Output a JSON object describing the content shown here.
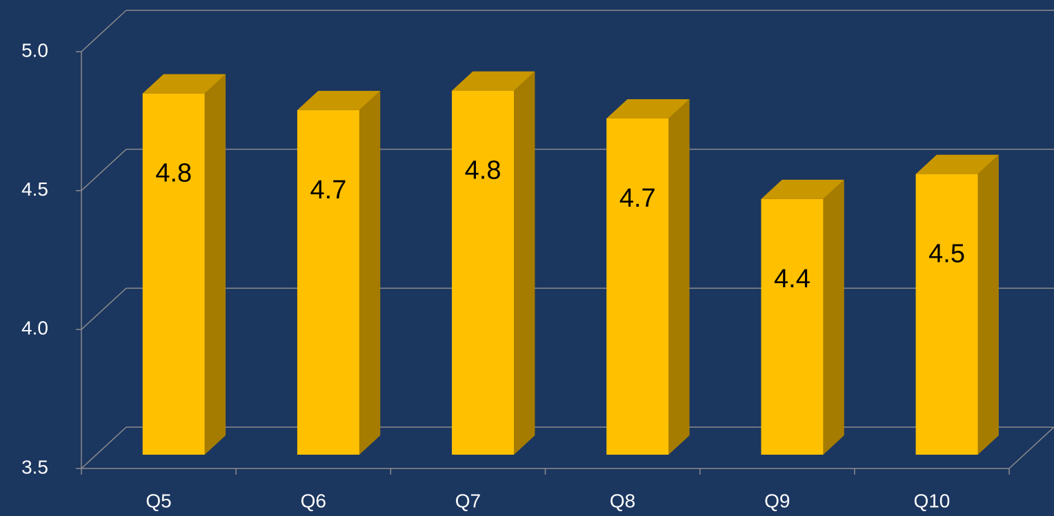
{
  "chart_data": {
    "type": "bar3d",
    "categories": [
      "Q5",
      "Q6",
      "Q7",
      "Q8",
      "Q9",
      "Q10"
    ],
    "values": [
      4.8,
      4.74,
      4.81,
      4.71,
      4.42,
      4.51
    ],
    "value_labels": [
      "4.8",
      "4.7",
      "4.8",
      "4.7",
      "4.4",
      "4.5"
    ],
    "color": "#ffc000",
    "ylim": [
      3.5,
      5.0
    ],
    "yticks": [
      {
        "value": 3.5,
        "label": "3.5"
      },
      {
        "value": 4.0,
        "label": "4.0"
      },
      4.5,
      {
        "value": 5.0,
        "label": "5.0"
      }
    ],
    "grid": true
  }
}
